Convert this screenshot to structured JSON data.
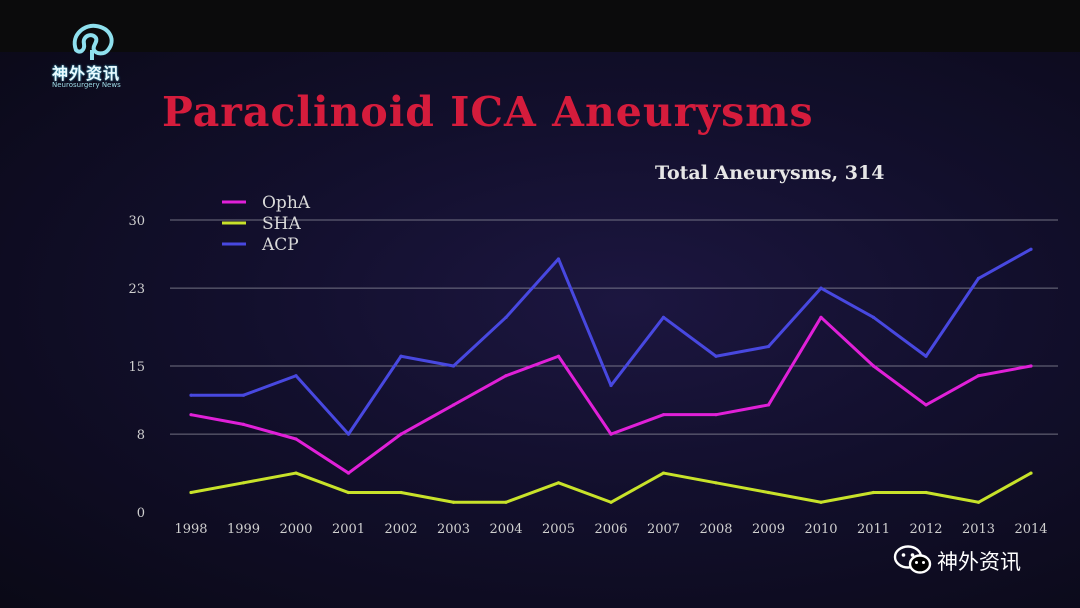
{
  "logo": {
    "name_cn": "神外资讯",
    "name_en": "Neurosurgery News"
  },
  "slide": {
    "title": "Paraclinoid ICA Aneurysms",
    "subtitle": "Total Aneurysms, 314"
  },
  "watermark": {
    "text": "神外资讯",
    "icon": "wechat-icon"
  },
  "chart_data": {
    "type": "line",
    "x": [
      "1998",
      "1999",
      "2000",
      "2001",
      "2002",
      "2003",
      "2004",
      "2005",
      "2006",
      "2007",
      "2008",
      "2009",
      "2010",
      "2011",
      "2012",
      "2013",
      "2014"
    ],
    "yticks": [
      "0",
      "8",
      "15",
      "23",
      "30"
    ],
    "ylim": [
      0,
      30
    ],
    "grid": true,
    "legend_position": "top-left",
    "series": [
      {
        "name": "OphA",
        "color": "#e020d8",
        "values": [
          10,
          9,
          7.5,
          4,
          8,
          11,
          14,
          16,
          8,
          10,
          10,
          11,
          20,
          15,
          11,
          14,
          15
        ]
      },
      {
        "name": "SHA",
        "color": "#c8e22a",
        "values": [
          2,
          3,
          4,
          2,
          2,
          1,
          1,
          3,
          1,
          4,
          3,
          2,
          1,
          2,
          2,
          1,
          4
        ]
      },
      {
        "name": "ACP",
        "color": "#4848e0",
        "values": [
          12,
          12,
          14,
          8,
          16,
          15,
          20,
          26,
          13,
          20,
          16,
          17,
          23,
          20,
          16,
          24,
          27
        ]
      }
    ]
  }
}
